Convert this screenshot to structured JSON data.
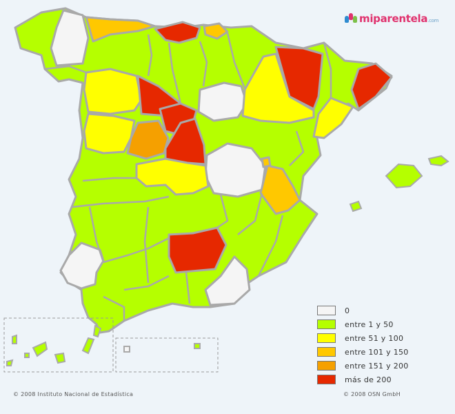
{
  "logo": {
    "text": "miparentela",
    "suffix": ".com",
    "colors": [
      "#2e8bd0",
      "#e0326e",
      "#7cc04a"
    ]
  },
  "colors": {
    "c0": "#f5f5f5",
    "c1": "#b5ff00",
    "c2": "#ffff00",
    "c3": "#ffc800",
    "c4": "#f5a000",
    "c5": "#e62800"
  },
  "legend": {
    "items": [
      {
        "label": "0",
        "color": "#f5f5f5"
      },
      {
        "label": "entre 1 y 50",
        "color": "#b5ff00"
      },
      {
        "label": "entre 51 y 100",
        "color": "#ffff00"
      },
      {
        "label": "entre 101 y 150",
        "color": "#ffc800"
      },
      {
        "label": "entre 151 y 200",
        "color": "#f5a000"
      },
      {
        "label": "más de 200",
        "color": "#e62800"
      }
    ]
  },
  "footer": {
    "left": "© 2008 Instituto Nacional de Estadística",
    "right": "© 2008 OSN GmbH"
  }
}
